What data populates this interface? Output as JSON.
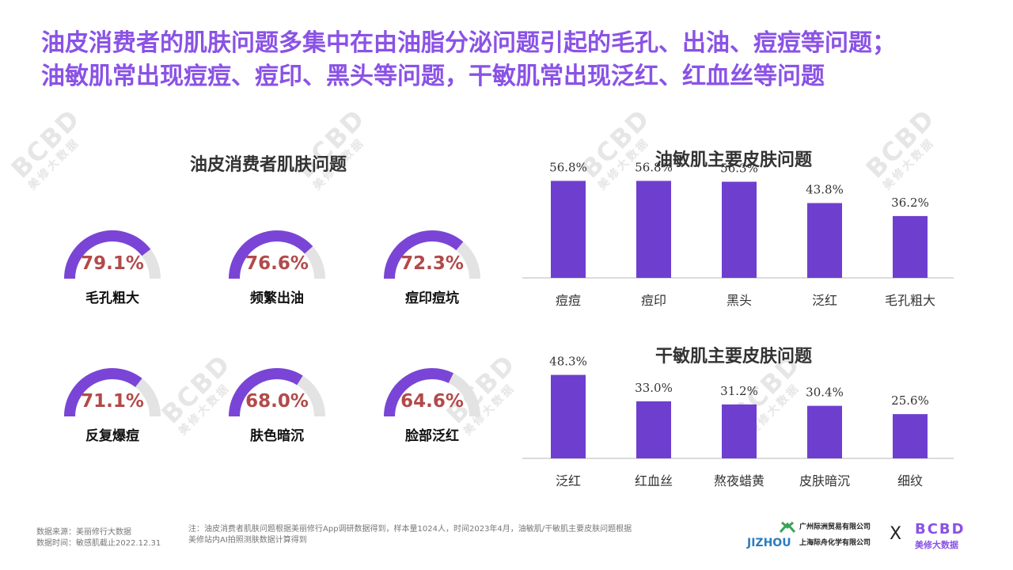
{
  "headline": {
    "line1": "油皮消费者的肌肤问题多集中在由油脂分泌问题引起的毛孔、出油、痘痘等问题；",
    "line2": "油敏肌常出现痘痘、痘印、黑头等问题，干敏肌常出现泛红、红血丝等问题"
  },
  "colors": {
    "accent": "#8a52e6",
    "bar": "#6e3fcf",
    "gauge_fill": "#7a45d6",
    "gauge_track": "#e3e3e3",
    "pct_text": "#b24a4a"
  },
  "chart_data": [
    {
      "type": "gauge",
      "title": "油皮消费者肌肤问题",
      "categories": [
        "毛孔粗大",
        "频繁出油",
        "痘印痘坑",
        "反复爆痘",
        "肤色暗沉",
        "脸部泛红"
      ],
      "values": [
        79.1,
        76.6,
        72.3,
        71.1,
        68.0,
        64.6
      ],
      "value_labels": [
        "79.1%",
        "76.6%",
        "72.3%",
        "71.1%",
        "68.0%",
        "64.6%"
      ]
    },
    {
      "type": "bar",
      "title": "油敏肌主要皮肤问题",
      "categories": [
        "痘痘",
        "痘印",
        "黑头",
        "泛红",
        "毛孔粗大"
      ],
      "values": [
        56.8,
        56.8,
        56.3,
        43.8,
        36.2
      ],
      "value_labels": [
        "56.8%",
        "56.8%",
        "56.3%",
        "43.8%",
        "36.2%"
      ],
      "ylim": [
        0,
        70
      ]
    },
    {
      "type": "bar",
      "title": "干敏肌主要皮肤问题",
      "categories": [
        "泛红",
        "红血丝",
        "熬夜蜡黄",
        "皮肤暗沉",
        "细纹"
      ],
      "values": [
        48.3,
        33.0,
        31.2,
        30.4,
        25.6
      ],
      "value_labels": [
        "48.3%",
        "33.0%",
        "31.2%",
        "30.4%",
        "25.6%"
      ],
      "ylim": [
        0,
        60
      ]
    }
  ],
  "footer": {
    "source_line1": "数据来源：美丽修行大数据",
    "source_line2": "数据时间：敏感肌截止2022.12.31",
    "note_line1": "注：油皮消费者肌肤问题根据美丽修行App调研数据得到，样本量1024人，时间2023年4月，油敏肌/干敏肌主要皮肤问题根据",
    "note_line2": "美修站内AI拍照测肤数据计算得到"
  },
  "logos": {
    "company1": "广州际洲贸易有限公司",
    "company2": "上海际舟化学有限公司",
    "brand": "JIZHOU",
    "x": "X",
    "bcbd": "BCBD",
    "bcbd_sub": "美修大数据"
  },
  "watermark": {
    "mark": "BCBD",
    "text": "美修大数据"
  }
}
